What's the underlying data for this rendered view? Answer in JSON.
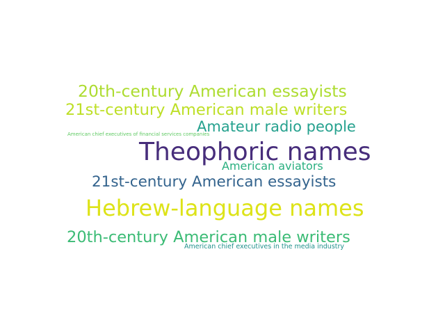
{
  "words": [
    {
      "text": "Theophoric names",
      "color": "#472d7b"
    },
    {
      "text": "Hebrew-language names",
      "color": "#dde318"
    },
    {
      "text": "20th-century American essayists",
      "color": "#addc30"
    },
    {
      "text": "21st-century American male writers",
      "color": "#bddf26"
    },
    {
      "text": "Amateur radio people",
      "color": "#25a18e"
    },
    {
      "text": "21st-century American essayists",
      "color": "#33638d"
    },
    {
      "text": "20th-century American male writers",
      "color": "#3bbb75"
    },
    {
      "text": "American aviators",
      "color": "#29af7f"
    },
    {
      "text": "American chief executives of financial services companies",
      "color": "#5ec962"
    },
    {
      "text": "American chief executives in the media industry",
      "color": "#21918c"
    }
  ]
}
